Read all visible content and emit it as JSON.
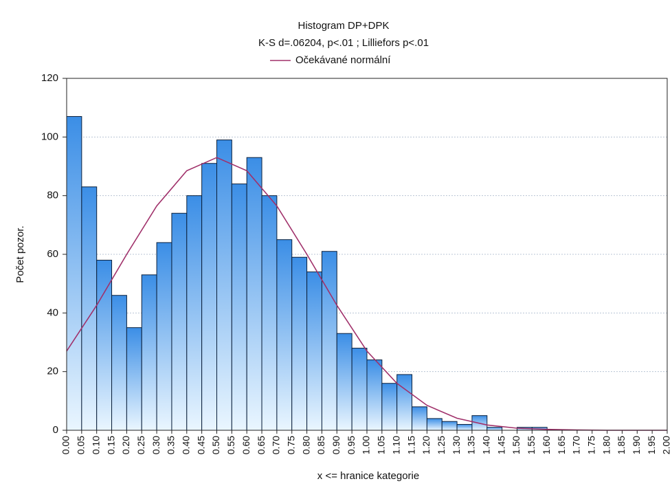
{
  "chart_data": {
    "type": "histogram",
    "title": "Histogram  DP+DPK",
    "subtitle": "K-S d=.06204, p<.01 ; Lilliefors p<.01",
    "x_label": "x <= hranice kategorie",
    "y_label": "Počet pozor.",
    "color": "#3b8ee6",
    "bins": [
      0,
      0.05,
      0.1,
      0.15,
      0.2,
      0.25,
      0.3,
      0.35,
      0.4,
      0.45,
      0.5,
      0.55,
      0.6,
      0.65,
      0.7,
      0.75,
      0.8,
      0.85,
      0.9,
      0.95,
      1,
      1.05,
      1.1,
      1.15,
      1.2,
      1.25,
      1.3,
      1.35,
      1.4,
      1.45,
      1.5,
      1.55,
      1.6,
      1.65,
      1.7,
      1.75,
      1.8,
      1.85,
      1.9,
      1.95,
      2
    ],
    "values": [
      107,
      83,
      58,
      46,
      35,
      53,
      64,
      74,
      80,
      91,
      99,
      84,
      93,
      80,
      65,
      59,
      54,
      61,
      33,
      28,
      24,
      16,
      19,
      8,
      4,
      3,
      2,
      5,
      1,
      0,
      1,
      1,
      0,
      0,
      0,
      0,
      0,
      0,
      0,
      0
    ],
    "curve": {
      "name": "Očekávané normální",
      "color": "#a0306a",
      "x": [
        0,
        0.1,
        0.2,
        0.3,
        0.4,
        0.5,
        0.6,
        0.7,
        0.8,
        0.9,
        1,
        1.1,
        1.2,
        1.3,
        1.4,
        1.5,
        1.6,
        1.7,
        1.8,
        1.9,
        2
      ],
      "values": [
        27,
        42.6,
        60,
        76.5,
        88.5,
        93,
        88.5,
        76.5,
        60,
        42.6,
        27,
        16,
        8.5,
        4.1,
        1.8,
        0.7,
        0.3,
        0.1,
        0,
        0,
        0
      ]
    },
    "xlim": [
      0,
      2
    ],
    "ylim": [
      0,
      120
    ],
    "yticks": [
      0,
      20,
      40,
      60,
      80,
      100,
      120
    ],
    "xticks": [
      {
        "value": 0,
        "label": "0.00"
      },
      {
        "value": 0.05,
        "label": "0.05"
      },
      {
        "value": 0.1,
        "label": "0.10"
      },
      {
        "value": 0.15,
        "label": "0.15"
      },
      {
        "value": 0.2,
        "label": "0.20"
      },
      {
        "value": 0.25,
        "label": "0.25"
      },
      {
        "value": 0.3,
        "label": "0.30"
      },
      {
        "value": 0.35,
        "label": "0.35"
      },
      {
        "value": 0.4,
        "label": "0.40"
      },
      {
        "value": 0.45,
        "label": "0.45"
      },
      {
        "value": 0.5,
        "label": "0.50"
      },
      {
        "value": 0.55,
        "label": "0.55"
      },
      {
        "value": 0.6,
        "label": "0.60"
      },
      {
        "value": 0.65,
        "label": "0.65"
      },
      {
        "value": 0.7,
        "label": "0.70"
      },
      {
        "value": 0.75,
        "label": "0.75"
      },
      {
        "value": 0.8,
        "label": "0.80"
      },
      {
        "value": 0.85,
        "label": "0.85"
      },
      {
        "value": 0.9,
        "label": "0.90"
      },
      {
        "value": 0.95,
        "label": "0.95"
      },
      {
        "value": 1,
        "label": "1.00"
      },
      {
        "value": 1.05,
        "label": "1.05"
      },
      {
        "value": 1.1,
        "label": "1.10"
      },
      {
        "value": 1.15,
        "label": "1.15"
      },
      {
        "value": 1.2,
        "label": "1.20"
      },
      {
        "value": 1.25,
        "label": "1.25"
      },
      {
        "value": 1.3,
        "label": "1.30"
      },
      {
        "value": 1.35,
        "label": "1.35"
      },
      {
        "value": 1.4,
        "label": "1.40"
      },
      {
        "value": 1.45,
        "label": "1.45"
      },
      {
        "value": 1.5,
        "label": "1.50"
      },
      {
        "value": 1.55,
        "label": "1.55"
      },
      {
        "value": 1.6,
        "label": "1.60"
      },
      {
        "value": 1.65,
        "label": "1.65"
      },
      {
        "value": 1.7,
        "label": "1.70"
      },
      {
        "value": 1.75,
        "label": "1.75"
      },
      {
        "value": 1.8,
        "label": "1.80"
      },
      {
        "value": 1.85,
        "label": "1.85"
      },
      {
        "value": 1.9,
        "label": "1.90"
      },
      {
        "value": 1.95,
        "label": "1.95"
      },
      {
        "value": 2,
        "label": "2.00"
      }
    ],
    "grid": true
  }
}
